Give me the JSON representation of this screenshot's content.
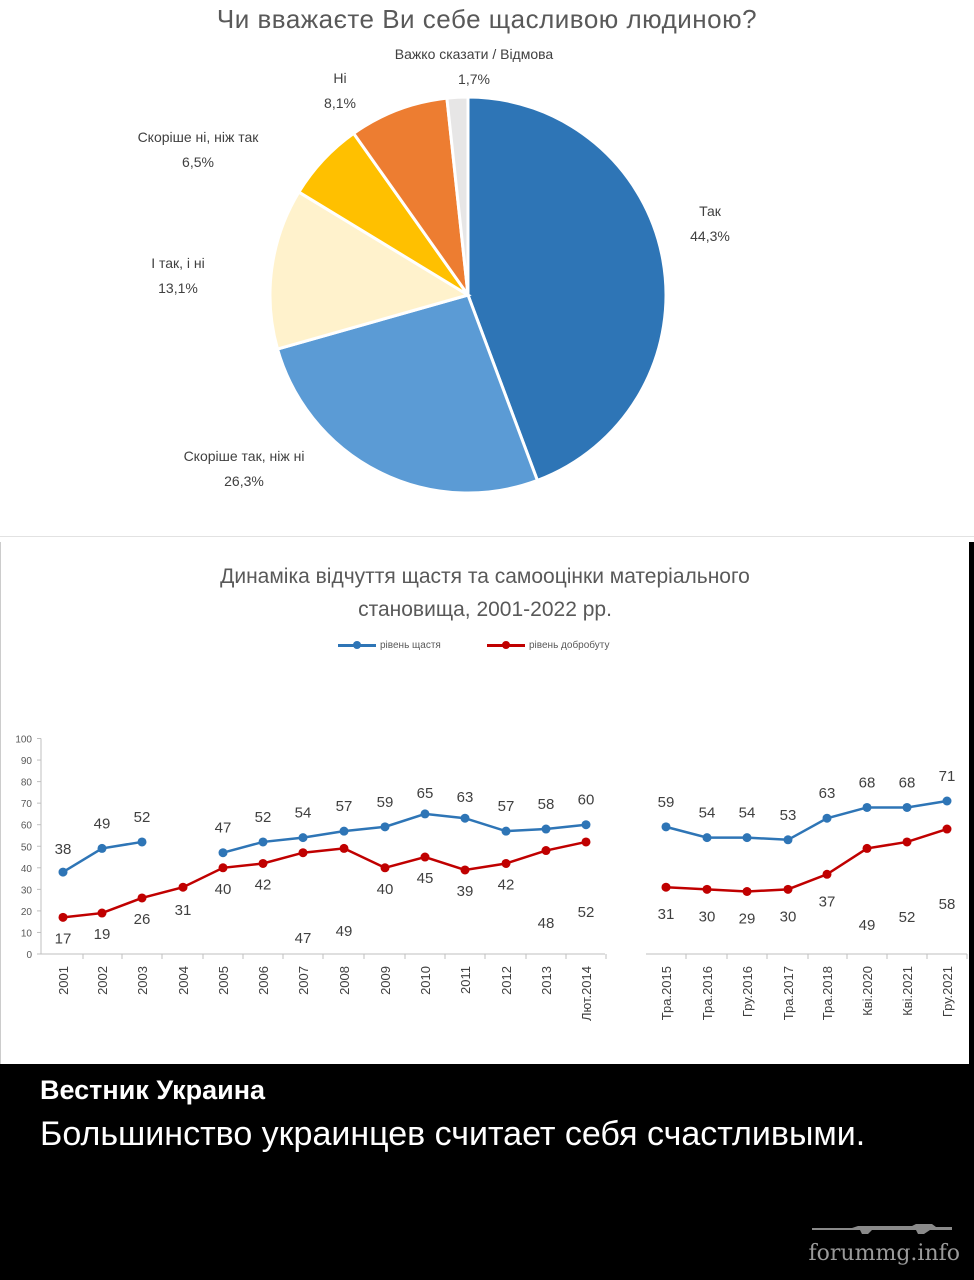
{
  "pie": {
    "title": "Чи вважаєте Ви себе щасливою людиною?",
    "chart_data": {
      "type": "pie",
      "slices": [
        {
          "name": "Так",
          "value": 44.3,
          "label": "44,3%",
          "color": "#2E75B6"
        },
        {
          "name": "Скоріше так, ніж ні",
          "value": 26.3,
          "label": "26,3%",
          "color": "#5B9BD5"
        },
        {
          "name": "І так, і ні",
          "value": 13.1,
          "label": "13,1%",
          "color": "#FFF2CC"
        },
        {
          "name": "Скоріше ні, ніж так",
          "value": 6.5,
          "label": "6,5%",
          "color": "#FFC000"
        },
        {
          "name": "Ні",
          "value": 8.1,
          "label": "8,1%",
          "color": "#ED7D31"
        },
        {
          "name": "Важко сказати / Відмова",
          "value": 1.7,
          "label": "1,7%",
          "color": "#E7E6E6"
        }
      ]
    }
  },
  "line": {
    "title_line1": "Динаміка відчуття щастя та самооцінки матеріального",
    "title_line2": "становища, 2001-2022 рр.",
    "chart_data": {
      "type": "line",
      "ylim": [
        0,
        100
      ],
      "yticks": [
        0,
        10,
        20,
        30,
        40,
        50,
        60,
        70,
        80,
        90,
        100
      ],
      "legend_position": "top",
      "categories": [
        "2001",
        "2002",
        "2003",
        "2004",
        "2005",
        "2006",
        "2007",
        "2008",
        "2009",
        "2010",
        "2011",
        "2012",
        "2013",
        "Лют.2014",
        "Тра.2015",
        "Тра.2016",
        "Гру.2016",
        "Тра.2017",
        "Тра.2018",
        "Кві.2020",
        "Кві.2021",
        "Гру.2021"
      ],
      "series": [
        {
          "name": "рівень щастя",
          "color": "#2E75B6",
          "values": [
            38,
            49,
            52,
            null,
            47,
            52,
            54,
            57,
            59,
            65,
            63,
            57,
            58,
            60,
            59,
            54,
            54,
            53,
            63,
            68,
            68,
            71
          ]
        },
        {
          "name": "рівень добробуту",
          "color": "#C00000",
          "values": [
            17,
            19,
            26,
            31,
            40,
            42,
            47,
            49,
            40,
            45,
            39,
            42,
            48,
            52,
            31,
            30,
            29,
            30,
            37,
            49,
            52,
            58
          ]
        }
      ]
    }
  },
  "caption": {
    "source": "Вестник Украина",
    "headline": "Большинство украинцев считает себя счастливыми."
  },
  "watermark": "forummg.info"
}
